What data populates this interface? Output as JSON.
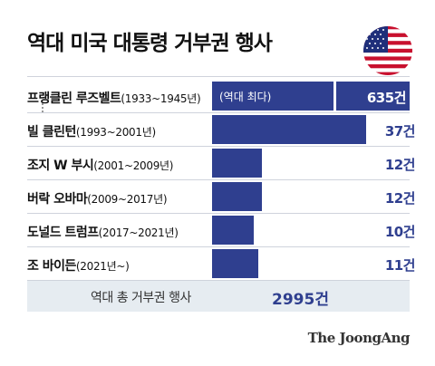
{
  "title": "역대 미국 대통령 거부권 행사",
  "flag_icon": "us-flag-icon",
  "colors": {
    "bar": "#2f3f8f",
    "value": "#2f3f8f",
    "total_band": "#e6ecf1"
  },
  "chart_data": {
    "type": "bar",
    "orientation": "horizontal",
    "categories": [
      "프랭클린 루즈벨트(1933~1945년)",
      "빌 클린턴(1993~2001년)",
      "조지 W 부시(2001~2009년)",
      "버락 오바마(2009~2017년)",
      "도널드 트럼프(2017~2021년)",
      "조 바이든(2021년~)"
    ],
    "names": [
      "프랭클린 루즈벨트",
      "빌 클린턴",
      "조지 W 부시",
      "버락 오바마",
      "도널드 트럼프",
      "조 바이든"
    ],
    "terms": [
      "(1933~1945년)",
      "(1993~2001년)",
      "(2001~2009년)",
      "(2009~2017년)",
      "(2017~2021년)",
      "(2021년~)"
    ],
    "values": [
      635,
      37,
      12,
      12,
      10,
      11
    ],
    "value_labels": [
      "635건",
      "37건",
      "12건",
      "12건",
      "10건",
      "11건"
    ],
    "annotation": "(역대 최다)",
    "axis_break": true
  },
  "total": {
    "label": "역대 총 거부권 행사",
    "value": "2995건"
  },
  "source": "The JoongAng"
}
